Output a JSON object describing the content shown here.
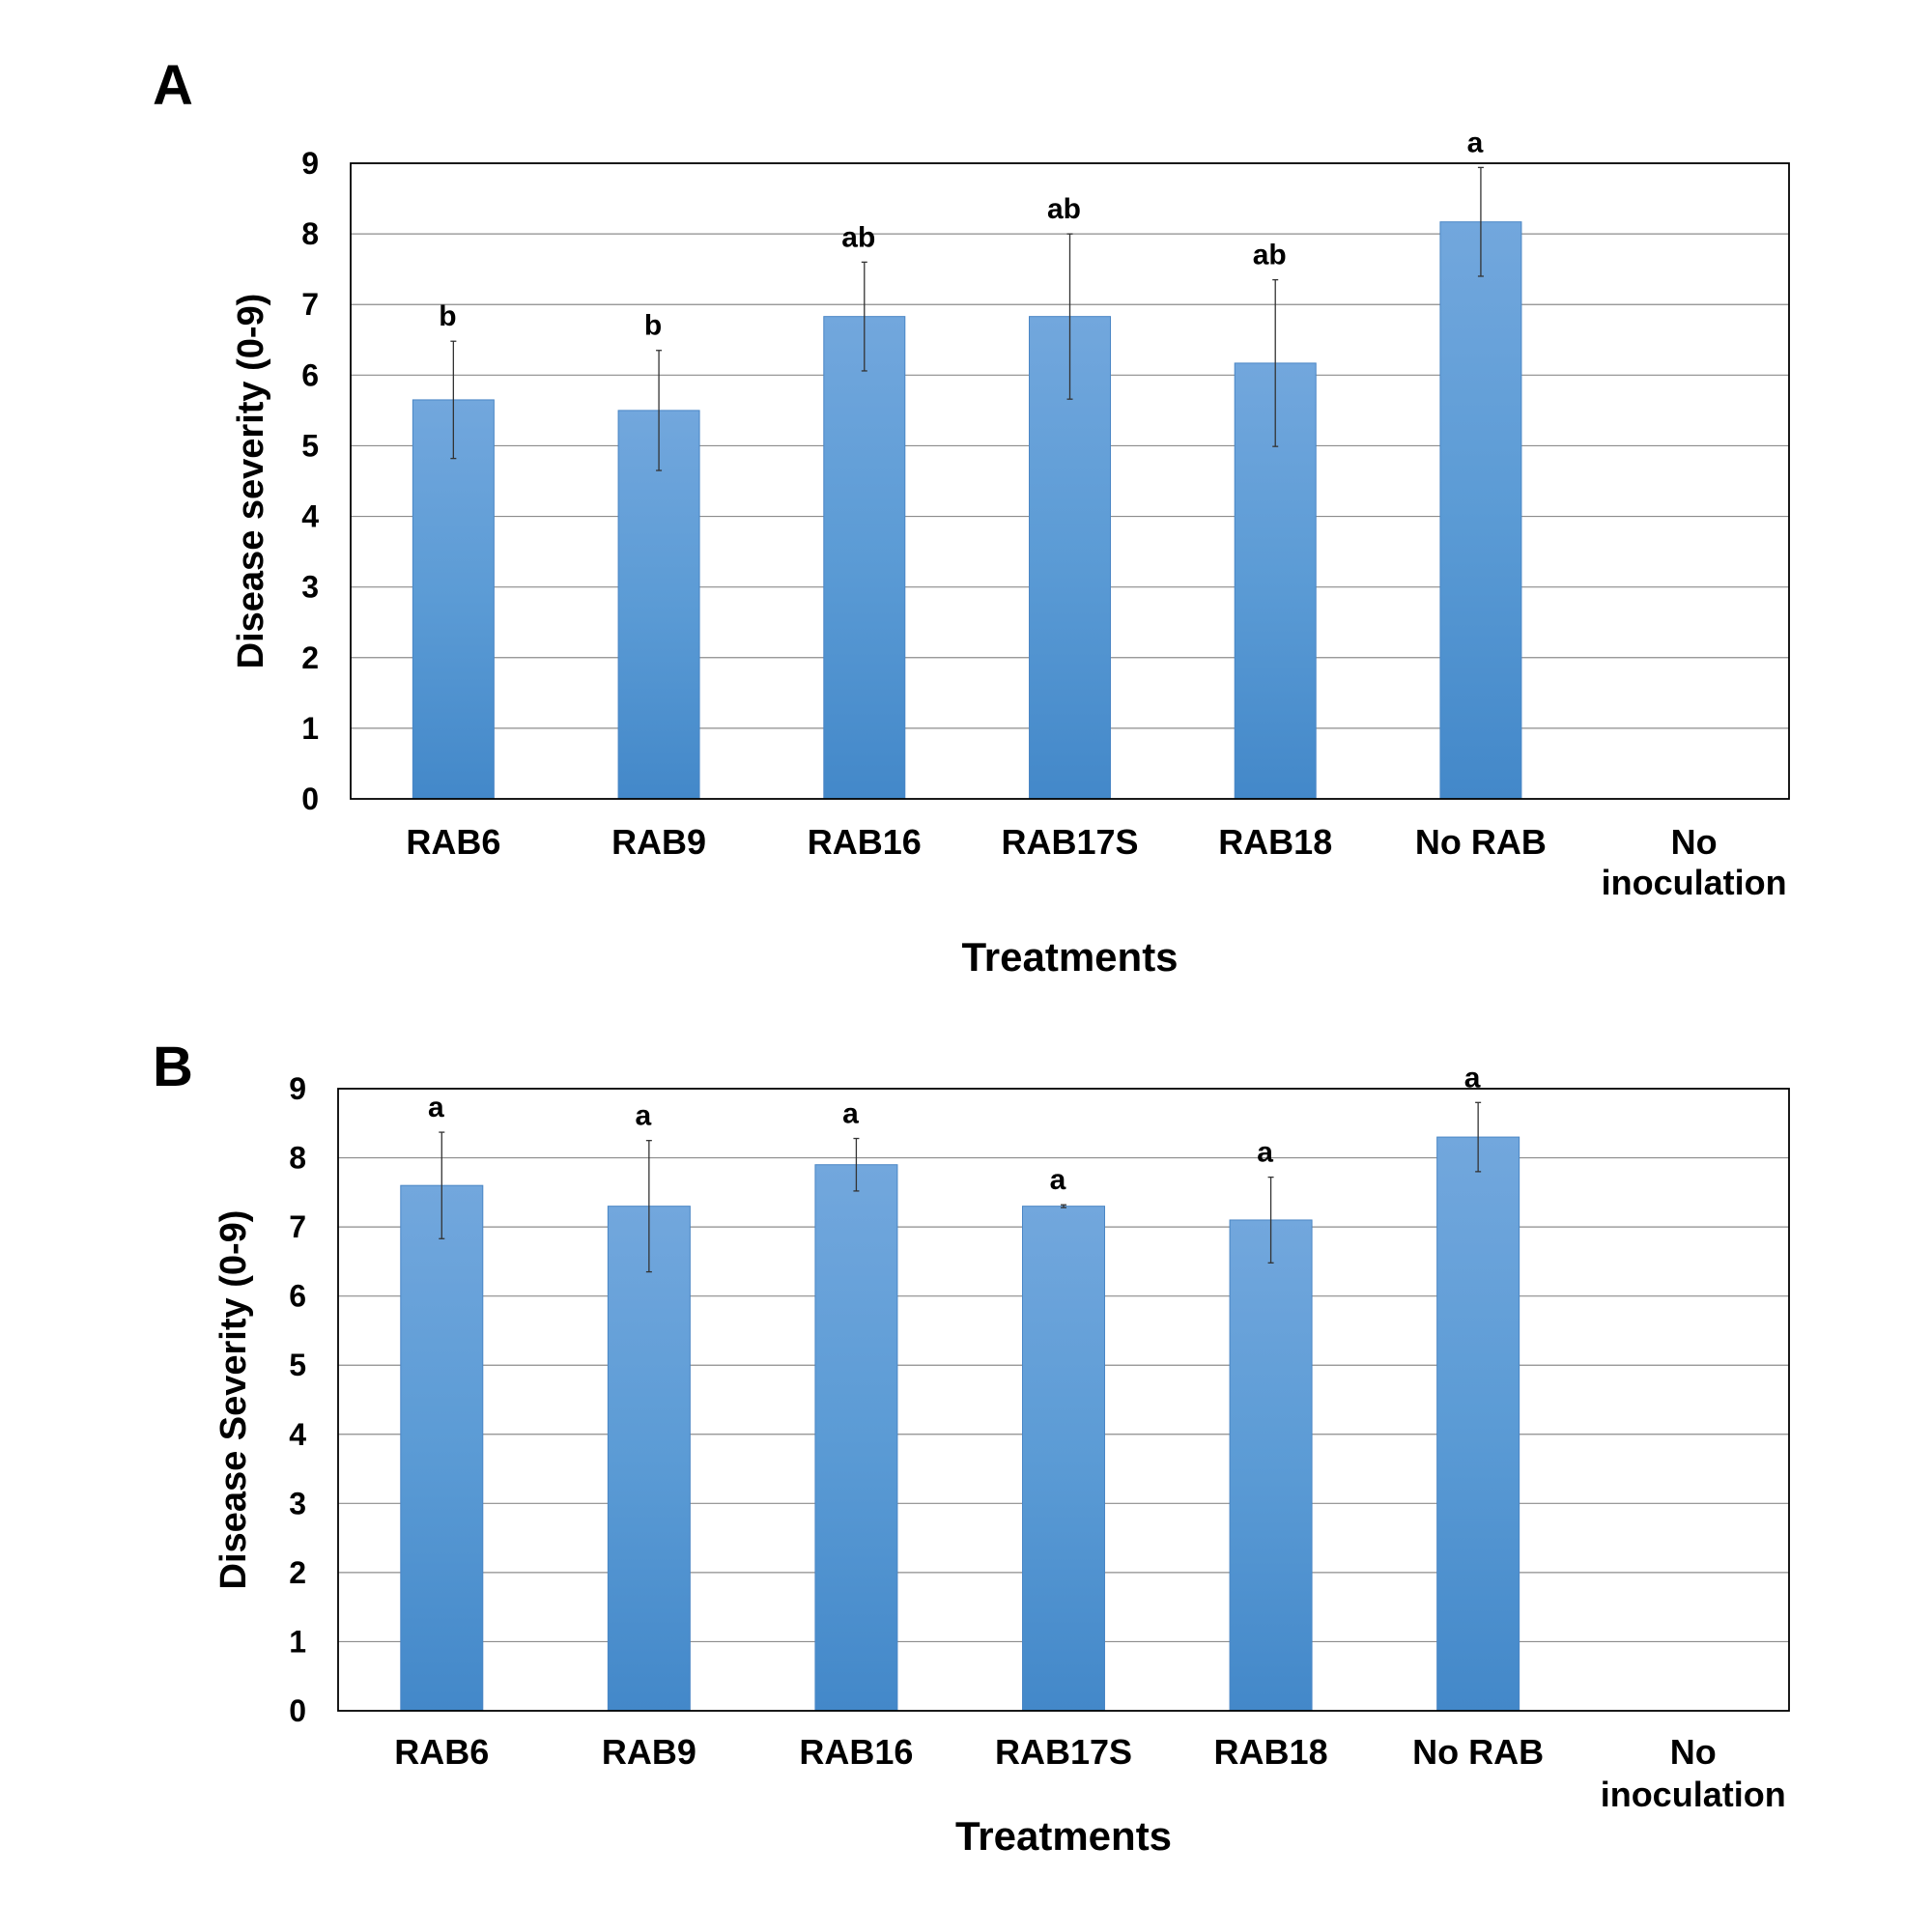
{
  "chart_data": [
    {
      "panel": "A",
      "type": "bar",
      "categories": [
        "RAB6",
        "RAB9",
        "RAB16",
        "RAB17S",
        "RAB18",
        "No RAB",
        "No\ninoculation"
      ],
      "values": [
        5.65,
        5.5,
        6.83,
        6.83,
        6.17,
        8.17,
        0
      ],
      "error": [
        0.83,
        0.85,
        0.77,
        1.17,
        1.18,
        0.77,
        0
      ],
      "significance": [
        "b",
        "b",
        "ab",
        "ab",
        "ab",
        "a",
        ""
      ],
      "xlabel": "Treatments",
      "ylabel": "Disease severity (0-9)",
      "ylim": [
        0,
        9
      ],
      "yticks": [
        0,
        1,
        2,
        3,
        4,
        5,
        6,
        7,
        8,
        9
      ],
      "grid": true,
      "bar_color": "#5B9BD5"
    },
    {
      "panel": "B",
      "type": "bar",
      "categories": [
        "RAB6",
        "RAB9",
        "RAB16",
        "RAB17S",
        "RAB18",
        "No RAB",
        "No\ninoculation"
      ],
      "values": [
        7.6,
        7.3,
        7.9,
        7.3,
        7.1,
        8.3,
        0
      ],
      "error": [
        0.77,
        0.95,
        0.38,
        0.02,
        0.62,
        0.5,
        0
      ],
      "significance": [
        "a",
        "a",
        "a",
        "a",
        "a",
        "a",
        ""
      ],
      "xlabel": "Treatments",
      "ylabel": "Disease Severity (0-9)",
      "ylim": [
        0,
        9
      ],
      "yticks": [
        0,
        1,
        2,
        3,
        4,
        5,
        6,
        7,
        8,
        9
      ],
      "grid": true,
      "bar_color": "#5B9BD5"
    }
  ]
}
